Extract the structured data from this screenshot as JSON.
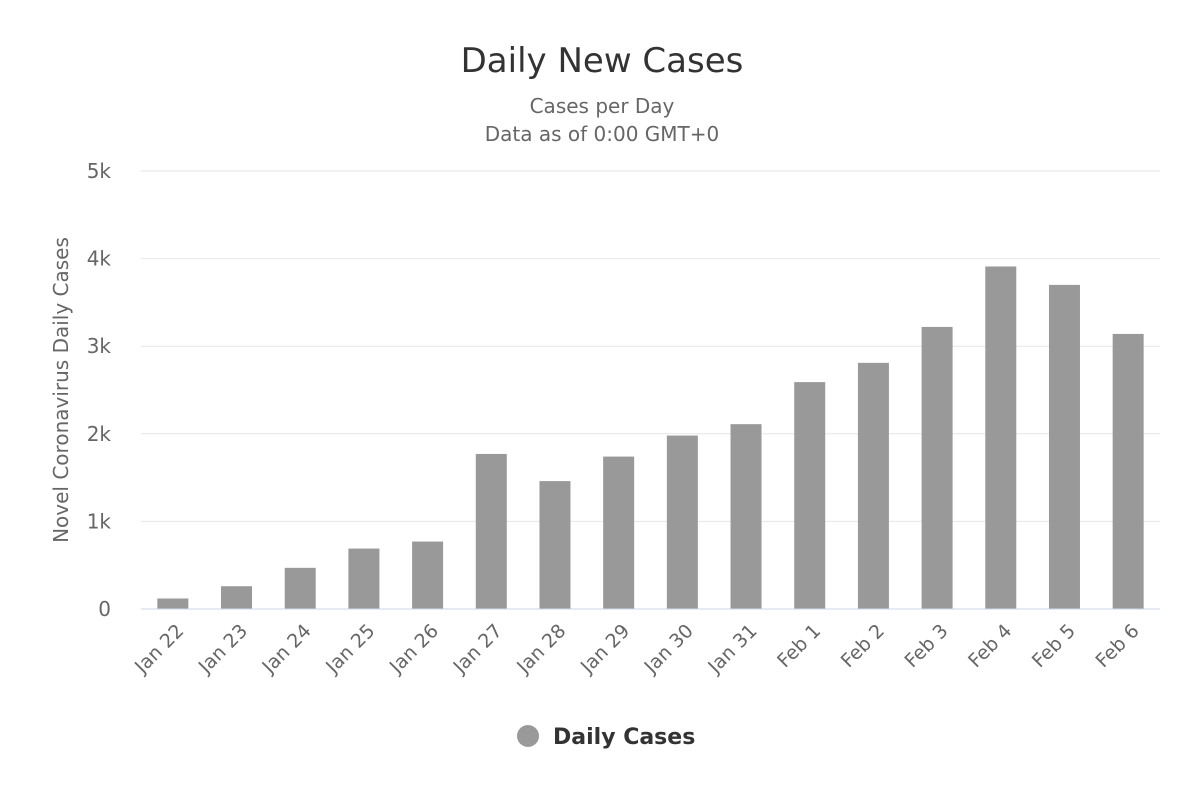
{
  "chart_data": {
    "type": "bar",
    "title": "Daily New Cases",
    "subtitle_lines": [
      "Cases per Day",
      "Data as of 0:00 GMT+0"
    ],
    "xlabel": "",
    "ylabel": "Novel Coronavirus Daily Cases",
    "ylim": [
      0,
      5000
    ],
    "y_ticks": [
      0,
      1000,
      2000,
      3000,
      4000,
      5000
    ],
    "y_tick_labels": [
      "0",
      "1k",
      "2k",
      "3k",
      "4k",
      "5k"
    ],
    "categories": [
      "Jan 22",
      "Jan 23",
      "Jan 24",
      "Jan 25",
      "Jan 26",
      "Jan 27",
      "Jan 28",
      "Jan 29",
      "Jan 30",
      "Jan 31",
      "Feb 1",
      "Feb 2",
      "Feb 3",
      "Feb 4",
      "Feb 5",
      "Feb 6"
    ],
    "series": [
      {
        "name": "Daily Cases",
        "color": "#999999",
        "values": [
          120,
          260,
          470,
          690,
          770,
          1770,
          1460,
          1740,
          1980,
          2110,
          2590,
          2810,
          3220,
          3910,
          3700,
          3140
        ]
      }
    ],
    "grid": true,
    "legend_position": "bottom-center"
  }
}
